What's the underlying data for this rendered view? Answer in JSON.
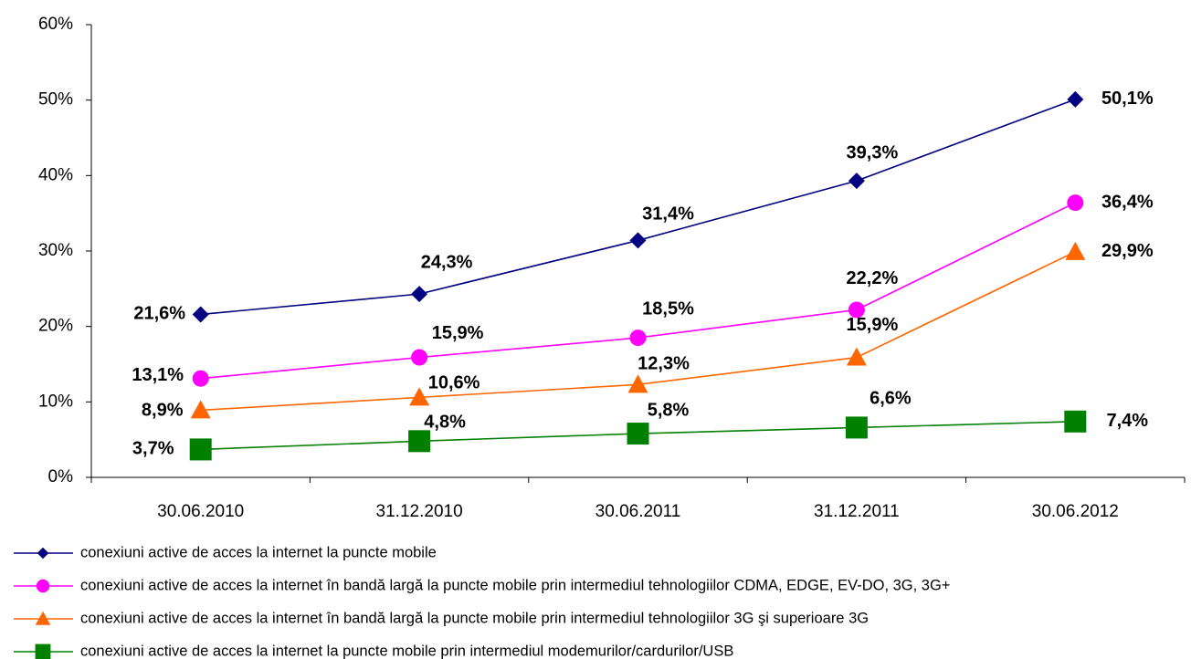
{
  "chart_data": {
    "type": "line",
    "categories": [
      "30.06.2010",
      "31.12.2010",
      "30.06.2011",
      "31.12.2011",
      "30.06.2012"
    ],
    "ylim": [
      0,
      60
    ],
    "yticks": [
      {
        "value": 0,
        "label": "0%"
      },
      {
        "value": 10,
        "label": "10%"
      },
      {
        "value": 20,
        "label": "20%"
      },
      {
        "value": 30,
        "label": "30%"
      },
      {
        "value": 40,
        "label": "40%"
      },
      {
        "value": 50,
        "label": "50%"
      },
      {
        "value": 60,
        "label": "60%"
      }
    ],
    "legend": "bottom",
    "series": [
      {
        "name": "conexiuni active de acces la internet la puncte mobile",
        "color": "#000080",
        "marker": "diamond",
        "values": [
          21.6,
          24.3,
          31.4,
          39.3,
          50.1
        ],
        "value_labels": [
          "21,6%",
          "24,3%",
          "31,4%",
          "39,3%",
          "50,1%"
        ]
      },
      {
        "name": "conexiuni active de acces la internet în bandă largă la puncte mobile prin intermediul tehnologiilor CDMA, EDGE, EV-DO, 3G, 3G+",
        "color": "#ff00ff",
        "marker": "circle",
        "values": [
          13.1,
          15.9,
          18.5,
          22.2,
          36.4
        ],
        "value_labels": [
          "13,1%",
          "15,9%",
          "18,5%",
          "22,2%",
          "36,4%"
        ]
      },
      {
        "name": "conexiuni active de acces la internet în bandă largă la puncte mobile prin intermediul tehnologiilor 3G şi superioare 3G",
        "color": "#ff6600",
        "marker": "triangle",
        "values": [
          8.9,
          10.6,
          12.3,
          15.9,
          29.9
        ],
        "value_labels": [
          "8,9%",
          "10,6%",
          "12,3%",
          "15,9%",
          "29,9%"
        ]
      },
      {
        "name": "conexiuni active de acces la internet la puncte mobile prin intermediul modemurilor/cardurilor/USB",
        "color": "#008000",
        "marker": "square",
        "values": [
          3.7,
          4.8,
          5.8,
          6.6,
          7.4
        ],
        "value_labels": [
          "3,7%",
          "4,8%",
          "5,8%",
          "6,6%",
          "7,4%"
        ]
      }
    ]
  }
}
